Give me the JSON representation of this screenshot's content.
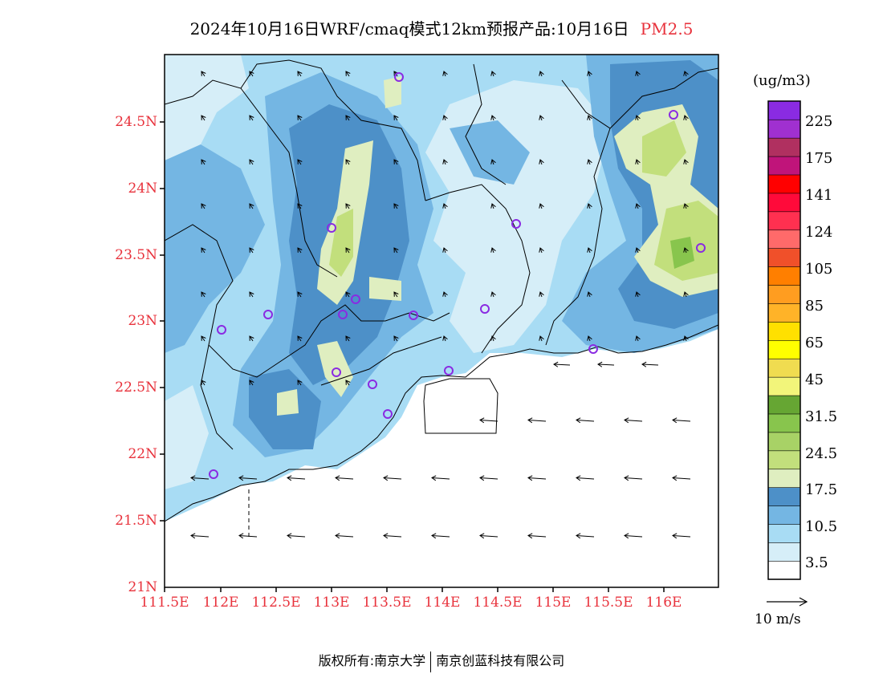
{
  "title": {
    "main": "2024年10月16日WRF/cmaq模式12km预报产品:10月16日",
    "pollutant": "PM2.5"
  },
  "lat_ticks": [
    "24.5N",
    "24N",
    "23.5N",
    "23N",
    "22.5N",
    "22N",
    "21.5N",
    "21N"
  ],
  "lon_ticks": [
    "111.5E",
    "112E",
    "112.5E",
    "113E",
    "113.5E",
    "114E",
    "114.5E",
    "115E",
    "115.5E",
    "116E"
  ],
  "colorbar": {
    "unit": "(ug/m3)",
    "colors": [
      "#ffffff",
      "#d6eef8",
      "#a8dcf4",
      "#74b6e3",
      "#4d90c8",
      "#dfeec0",
      "#c2df7c",
      "#a8d266",
      "#88c54d",
      "#66a633",
      "#f2f57a",
      "#f0dc50",
      "#ffff00",
      "#ffe000",
      "#ffb328",
      "#ff9d20",
      "#ff7f00",
      "#f0502a",
      "#ff6a6a",
      "#ff3050",
      "#ff0a3a",
      "#ff0000",
      "#c0147a",
      "#b03060",
      "#a030d0",
      "#8a2be2"
    ],
    "labels": [
      "3.5",
      "10.5",
      "17.5",
      "24.5",
      "31.5",
      "45",
      "65",
      "85",
      "105",
      "124",
      "141",
      "175",
      "225"
    ]
  },
  "wind_reference": "10 m/s",
  "footer": {
    "left": "版权所有:南京大学",
    "right": "南京创蓝科技有限公司"
  }
}
